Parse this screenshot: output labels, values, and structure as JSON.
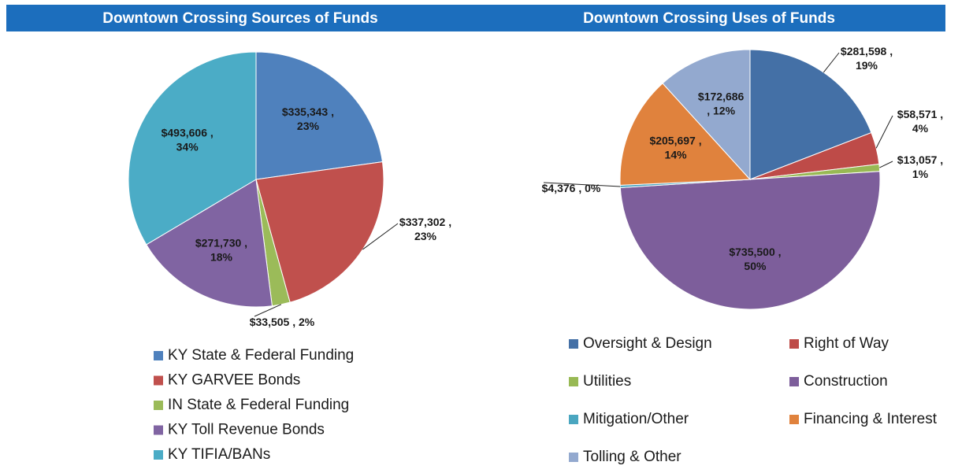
{
  "chart_data": [
    {
      "type": "pie",
      "title": "Downtown Crossing Sources of Funds",
      "categories": [
        "KY State & Federal Funding",
        "KY GARVEE Bonds",
        "IN State & Federal Funding",
        "KY Toll Revenue Bonds",
        "KY TIFIA/BANs"
      ],
      "values": [
        335343,
        337302,
        33505,
        271730,
        493606
      ],
      "value_labels": [
        "$335,343 ,\n23%",
        "$337,302 ,\n23%",
        "$33,505 , 2%",
        "$271,730 ,\n18%",
        "$493,606 ,\n34%"
      ],
      "colors": [
        "#4f81bd",
        "#c0504d",
        "#9bbb59",
        "#8064a2",
        "#4bacc6"
      ]
    },
    {
      "type": "pie",
      "title": "Downtown Crossing Uses of Funds",
      "categories": [
        "Oversight  & Design",
        "Right of Way",
        "Utilities",
        "Construction",
        "Mitigation/Other",
        "Financing & Interest",
        "Tolling & Other"
      ],
      "values": [
        281598,
        58571,
        13057,
        735500,
        4376,
        205697,
        172686
      ],
      "value_labels": [
        "$281,598 ,\n19%",
        "$58,571 ,\n4%",
        "$13,057 ,\n1%",
        "$735,500 ,\n50%",
        "$4,376 , 0%",
        "$205,697 ,\n14%",
        "$172,686\n, 12%"
      ],
      "colors": [
        "#4470a6",
        "#be4b48",
        "#98b954",
        "#7d5e9b",
        "#4aa6c0",
        "#e0823d",
        "#93a9cf"
      ]
    }
  ]
}
